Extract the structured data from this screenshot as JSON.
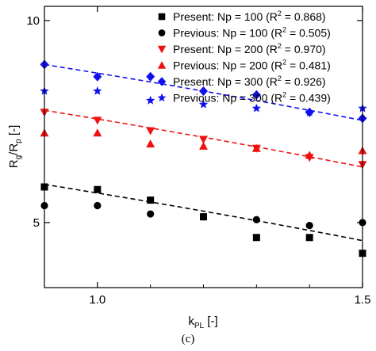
{
  "caption": "(c)",
  "chart_data": {
    "type": "scatter",
    "title": "",
    "xlabel": {
      "main": "k",
      "sub": "PL",
      "tail": " [-]"
    },
    "ylabel": {
      "p1": "R",
      "s1": "g",
      "p2": "/R",
      "s2": "p",
      "p3": " [-]"
    },
    "xlim": [
      0.9,
      1.5
    ],
    "ylim": [
      4.0,
      10.5
    ],
    "y_scale": "log",
    "xticks": [
      1.0,
      1.5
    ],
    "xtick_labels": [
      "1.0",
      "1.5"
    ],
    "yticks": [
      5,
      10
    ],
    "ytick_labels": [
      "5",
      "10"
    ],
    "grid": false,
    "legend_position": "top-right",
    "series": [
      {
        "name": "Present: Np = 100",
        "r2": "(R",
        "r2_val": " = 0.868)",
        "marker": "square",
        "color": "#000000",
        "x": [
          0.9,
          1.0,
          1.1,
          1.2,
          1.3,
          1.4,
          1.5
        ],
        "y": [
          5.65,
          5.6,
          5.4,
          5.1,
          4.75,
          4.75,
          4.5
        ]
      },
      {
        "name": "Previous: Np = 100",
        "r2": "(R",
        "r2_val": " = 0.505)",
        "marker": "circle",
        "color": "#000000",
        "x": [
          0.9,
          1.0,
          1.1,
          1.2,
          1.3,
          1.4,
          1.5
        ],
        "y": [
          5.3,
          5.3,
          5.15,
          5.1,
          5.05,
          4.95,
          5.0
        ]
      },
      {
        "name": "Present: Np = 200",
        "r2": "(R",
        "r2_val": " = 0.970)",
        "marker": "triangle-down",
        "color": "#ee1111",
        "x": [
          0.9,
          1.0,
          1.1,
          1.2,
          1.3,
          1.4,
          1.5
        ],
        "y": [
          7.3,
          7.1,
          6.85,
          6.65,
          6.45,
          6.25,
          6.1
        ]
      },
      {
        "name": "Previous: Np = 200",
        "r2": "(R",
        "r2_val": " = 0.481)",
        "marker": "triangle-up",
        "color": "#ee1111",
        "x": [
          0.9,
          1.0,
          1.1,
          1.2,
          1.3,
          1.4,
          1.5
        ],
        "y": [
          6.8,
          6.8,
          6.55,
          6.5,
          6.45,
          6.3,
          6.4
        ]
      },
      {
        "name": "Present: Np = 300",
        "r2": "(R",
        "r2_val": " = 0.926)",
        "marker": "diamond",
        "color": "#1010ee",
        "x": [
          0.9,
          1.0,
          1.1,
          1.2,
          1.3,
          1.4,
          1.5
        ],
        "y": [
          8.6,
          8.25,
          8.25,
          7.85,
          7.75,
          7.3,
          7.15
        ]
      },
      {
        "name": "Previous: Np =  300",
        "r2": "(R",
        "r2_val": " = 0.439)",
        "marker": "star",
        "color": "#1010ee",
        "x": [
          0.9,
          1.0,
          1.1,
          1.2,
          1.3,
          1.4,
          1.5
        ],
        "y": [
          7.85,
          7.85,
          7.6,
          7.5,
          7.4,
          7.3,
          7.4
        ]
      }
    ],
    "fit_lines": [
      {
        "color": "#000000",
        "x": [
          0.9,
          1.5
        ],
        "y": [
          5.7,
          4.7
        ]
      },
      {
        "color": "#ee1111",
        "x": [
          0.9,
          1.5
        ],
        "y": [
          7.35,
          6.05
        ]
      },
      {
        "color": "#1010ee",
        "x": [
          0.9,
          1.5
        ],
        "y": [
          8.6,
          7.1
        ]
      }
    ]
  }
}
